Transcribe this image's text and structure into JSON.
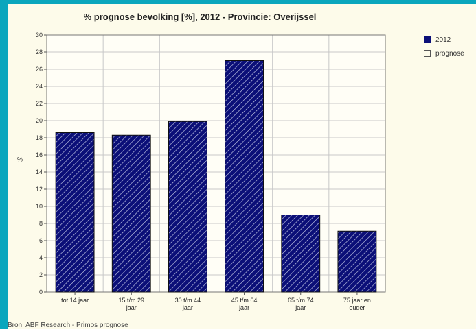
{
  "page": {
    "source_note": "Bron: ABF Research - Primos prognose"
  },
  "colors": {
    "background": "#0aa6bd",
    "panel": "#fdfbea",
    "bar_fill": "#0b0f78",
    "bar_hatch": "#c8cde8",
    "grid": "#c8c8c8"
  },
  "chart_data": {
    "type": "bar",
    "title": "% prognose bevolking [%], 2012 - Provincie: Overijssel",
    "xlabel": "",
    "ylabel": "%",
    "ylim": [
      0,
      30
    ],
    "ytick_step": 2,
    "categories": [
      [
        "tot 14 jaar"
      ],
      [
        "15 t/m 29",
        "jaar"
      ],
      [
        "30 t/m 44",
        "jaar"
      ],
      [
        "45 t/m 64",
        "jaar"
      ],
      [
        "65 t/m 74",
        "jaar"
      ],
      [
        "75 jaar en",
        "ouder"
      ]
    ],
    "series": [
      {
        "name": "2012",
        "values": [
          18.6,
          18.3,
          19.9,
          27.0,
          9.0,
          7.1
        ]
      }
    ],
    "legend": {
      "placement": "right",
      "entries": [
        {
          "label": "2012",
          "style": "filled"
        },
        {
          "label": "prognose",
          "style": "empty"
        }
      ]
    },
    "grid": true
  }
}
